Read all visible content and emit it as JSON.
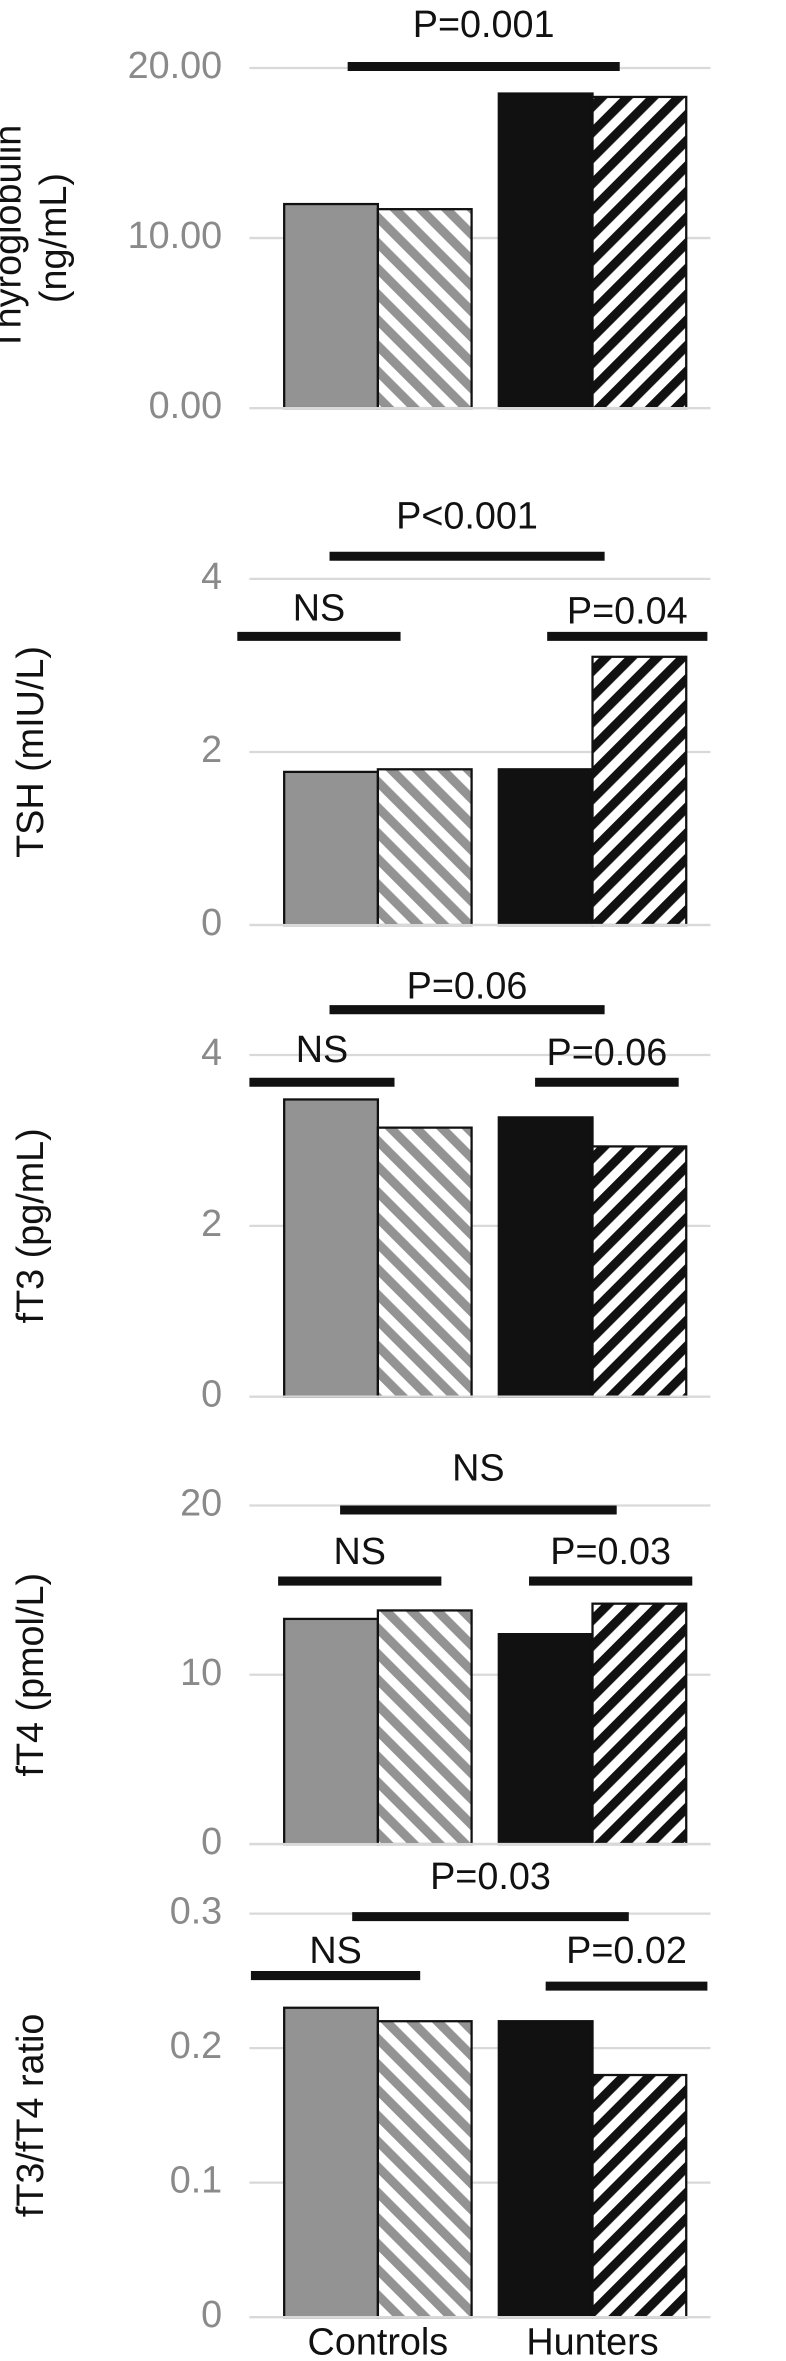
{
  "chart_data": [
    {
      "type": "bar",
      "ylabel": [
        "Thyroglobulin",
        "(ng/mL)"
      ],
      "categories": [
        null,
        null
      ],
      "series": [
        {
          "colors": [
            "#939393",
            "#111111"
          ],
          "pattern": "solid",
          "values": [
            12.0,
            18.5
          ]
        },
        {
          "colors": [
            "#939393",
            "#111111"
          ],
          "pattern": "hatch",
          "values": [
            11.7,
            18.3
          ]
        }
      ],
      "ylim": [
        0,
        20
      ],
      "yticks": [
        {
          "value": 0,
          "label": "0.00"
        },
        {
          "value": 10,
          "label": "10.00"
        },
        {
          "value": 20,
          "label": "20.00"
        }
      ],
      "grid": true,
      "annotations": [
        "P=0.001"
      ]
    },
    {
      "type": "bar",
      "ylabel": [
        "TSH (mIU/L)"
      ],
      "categories": [
        null,
        null
      ],
      "series": [
        {
          "colors": [
            "#939393",
            "#111111"
          ],
          "pattern": "solid",
          "values": [
            1.77,
            1.8
          ]
        },
        {
          "colors": [
            "#939393",
            "#111111"
          ],
          "pattern": "hatch",
          "values": [
            1.8,
            3.1
          ]
        }
      ],
      "ylim": [
        0,
        4
      ],
      "yticks": [
        0,
        2,
        4
      ],
      "grid": true,
      "annotations": [
        "P<0.001",
        "NS",
        "P=0.04"
      ]
    },
    {
      "type": "bar",
      "ylabel": [
        "fT3 (pg/mL)"
      ],
      "categories": [
        null,
        null
      ],
      "series": [
        {
          "colors": [
            "#939393",
            "#111111"
          ],
          "pattern": "solid",
          "values": [
            3.48,
            3.27
          ]
        },
        {
          "colors": [
            "#939393",
            "#111111"
          ],
          "pattern": "hatch",
          "values": [
            3.15,
            2.93
          ]
        }
      ],
      "ylim": [
        0,
        4
      ],
      "yticks": [
        0,
        2,
        4
      ],
      "grid": true,
      "annotations": [
        "P=0.06",
        "NS",
        "P=0.06"
      ]
    },
    {
      "type": "bar",
      "ylabel": [
        "fT4 (pmol/L)"
      ],
      "categories": [
        null,
        null
      ],
      "series": [
        {
          "colors": [
            "#939393",
            "#111111"
          ],
          "pattern": "solid",
          "values": [
            13.3,
            12.4
          ]
        },
        {
          "colors": [
            "#939393",
            "#111111"
          ],
          "pattern": "hatch",
          "values": [
            13.8,
            14.2
          ]
        }
      ],
      "ylim": [
        0,
        20
      ],
      "yticks": [
        0,
        10,
        20
      ],
      "grid": true,
      "annotations": [
        "NS",
        "NS",
        "P=0.03"
      ]
    },
    {
      "type": "bar",
      "ylabel": [
        "fT3/fT4 ratio"
      ],
      "categories": [
        "Controls",
        "Hunters"
      ],
      "series": [
        {
          "colors": [
            "#939393",
            "#111111"
          ],
          "pattern": "solid",
          "values": [
            0.23,
            0.22
          ]
        },
        {
          "colors": [
            "#939393",
            "#111111"
          ],
          "pattern": "hatch",
          "values": [
            0.22,
            0.18
          ]
        }
      ],
      "ylim": [
        0,
        0.3
      ],
      "yticks": [
        0,
        0.1,
        0.2,
        0.3
      ],
      "grid": true,
      "annotations": [
        "P=0.03",
        "NS",
        "P=0.02"
      ]
    }
  ]
}
